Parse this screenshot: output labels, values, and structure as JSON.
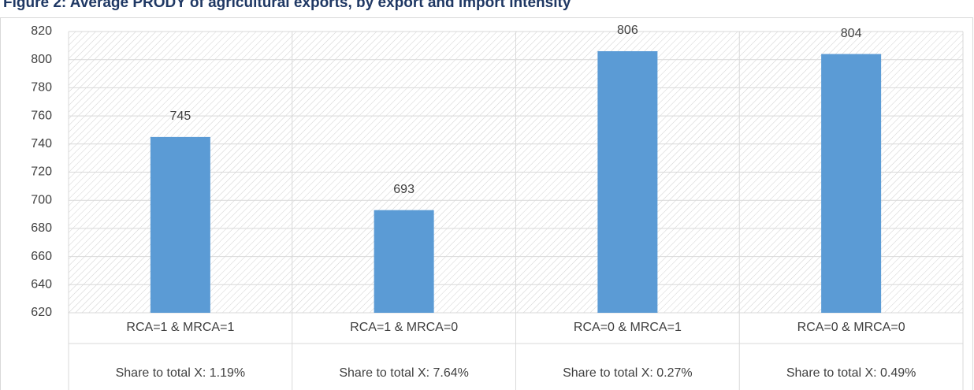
{
  "chart_data": {
    "type": "bar",
    "title": "Figure 2: Average PRODY of agricultural exports, by export and import intensity",
    "categories": [
      "RCA=1 & MRCA=1",
      "RCA=1 & MRCA=0",
      "RCA=0 & MRCA=1",
      "RCA=0 & MRCA=0"
    ],
    "subcategories": [
      "Share to total X: 1.19%",
      "Share to total X: 7.64%",
      "Share to total X: 0.27%",
      "Share to total X: 0.49%"
    ],
    "values": [
      745,
      693,
      806,
      804
    ],
    "color": "#5b9bd5",
    "ylim": [
      620,
      820
    ],
    "yticks": [
      620,
      640,
      660,
      680,
      700,
      720,
      740,
      760,
      780,
      800,
      820
    ],
    "grid": true
  }
}
